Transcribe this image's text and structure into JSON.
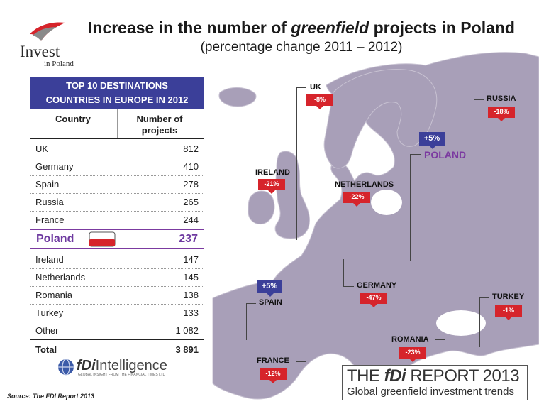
{
  "title_pre": "Increase in the number of ",
  "title_em": "greenfield",
  "title_post": " projects in Poland",
  "subtitle": "(percentage change  2011 – 2012)",
  "logo": {
    "main": "Invest",
    "sub": "in Poland"
  },
  "table": {
    "header_line1": "TOP 10 DESTINATIONS",
    "header_line2": "COUNTRIES IN EUROPE IN 2012",
    "col_country": "Country",
    "col_projects_1": "Number of",
    "col_projects_2": "projects",
    "rows": [
      {
        "country": "UK",
        "projects": "812"
      },
      {
        "country": "Germany",
        "projects": "410"
      },
      {
        "country": "Spain",
        "projects": "278"
      },
      {
        "country": "Russia",
        "projects": "265"
      },
      {
        "country": "France",
        "projects": "244"
      },
      {
        "country": "Poland",
        "projects": "237"
      },
      {
        "country": "Ireland",
        "projects": "147"
      },
      {
        "country": "Netherlands",
        "projects": "145"
      },
      {
        "country": "Romania",
        "projects": "138"
      },
      {
        "country": "Turkey",
        "projects": "133"
      },
      {
        "country": "Other",
        "projects": "1 082"
      },
      {
        "country": "Total",
        "projects": "3 891"
      }
    ]
  },
  "map_labels": {
    "uk": {
      "name": "UK",
      "change": "-8%"
    },
    "ireland": {
      "name": "IRELAND",
      "change": "-21%"
    },
    "netherlands": {
      "name": "NETHERLANDS",
      "change": "-22%"
    },
    "russia": {
      "name": "RUSSIA",
      "change": "-18%"
    },
    "poland": {
      "name": "POLAND",
      "change": "+5%"
    },
    "germany": {
      "name": "GERMANY",
      "change": "-47%"
    },
    "spain": {
      "name": "SPAIN",
      "change": "+5%"
    },
    "france": {
      "name": "FRANCE",
      "change": "-12%"
    },
    "romania": {
      "name": "ROMANIA",
      "change": "-23%"
    },
    "turkey": {
      "name": "TURKEY",
      "change": "-1%"
    }
  },
  "fdi_intelligence": {
    "pre": "fDi",
    "post": "Intelligence",
    "tagline": "GLOBAL INSIGHT FROM THE FINANCIAL TIMES LTD"
  },
  "fdi_report": {
    "line1_pre": "THE ",
    "line1_em": "fDi",
    "line1_post": " REPORT 2013",
    "line2": "Global greenfield investment trends"
  },
  "source": "Source: The FDI Report 2013",
  "colors": {
    "accent_blue": "#3b3f99",
    "decline_red": "#d6242b",
    "poland_purple": "#6e3aa0",
    "map_land": "#a89fb8"
  },
  "chart_data": [
    {
      "type": "table",
      "title": "TOP 10 DESTINATIONS COUNTRIES IN EUROPE IN 2012",
      "columns": [
        "Country",
        "Number of projects"
      ],
      "rows": [
        [
          "UK",
          812
        ],
        [
          "Germany",
          410
        ],
        [
          "Spain",
          278
        ],
        [
          "Russia",
          265
        ],
        [
          "France",
          244
        ],
        [
          "Poland",
          237
        ],
        [
          "Ireland",
          147
        ],
        [
          "Netherlands",
          145
        ],
        [
          "Romania",
          138
        ],
        [
          "Turkey",
          133
        ],
        [
          "Other",
          1082
        ],
        [
          "Total",
          3891
        ]
      ]
    },
    {
      "type": "map",
      "title": "Increase in the number of greenfield projects in Poland",
      "subtitle": "(percentage change  2011 – 2012)",
      "categories": [
        "UK",
        "IRELAND",
        "NETHERLANDS",
        "RUSSIA",
        "POLAND",
        "GERMANY",
        "SPAIN",
        "FRANCE",
        "ROMANIA",
        "TURKEY"
      ],
      "values": [
        -8,
        -21,
        -22,
        -18,
        5,
        -47,
        5,
        -12,
        -23,
        -1
      ]
    }
  ]
}
